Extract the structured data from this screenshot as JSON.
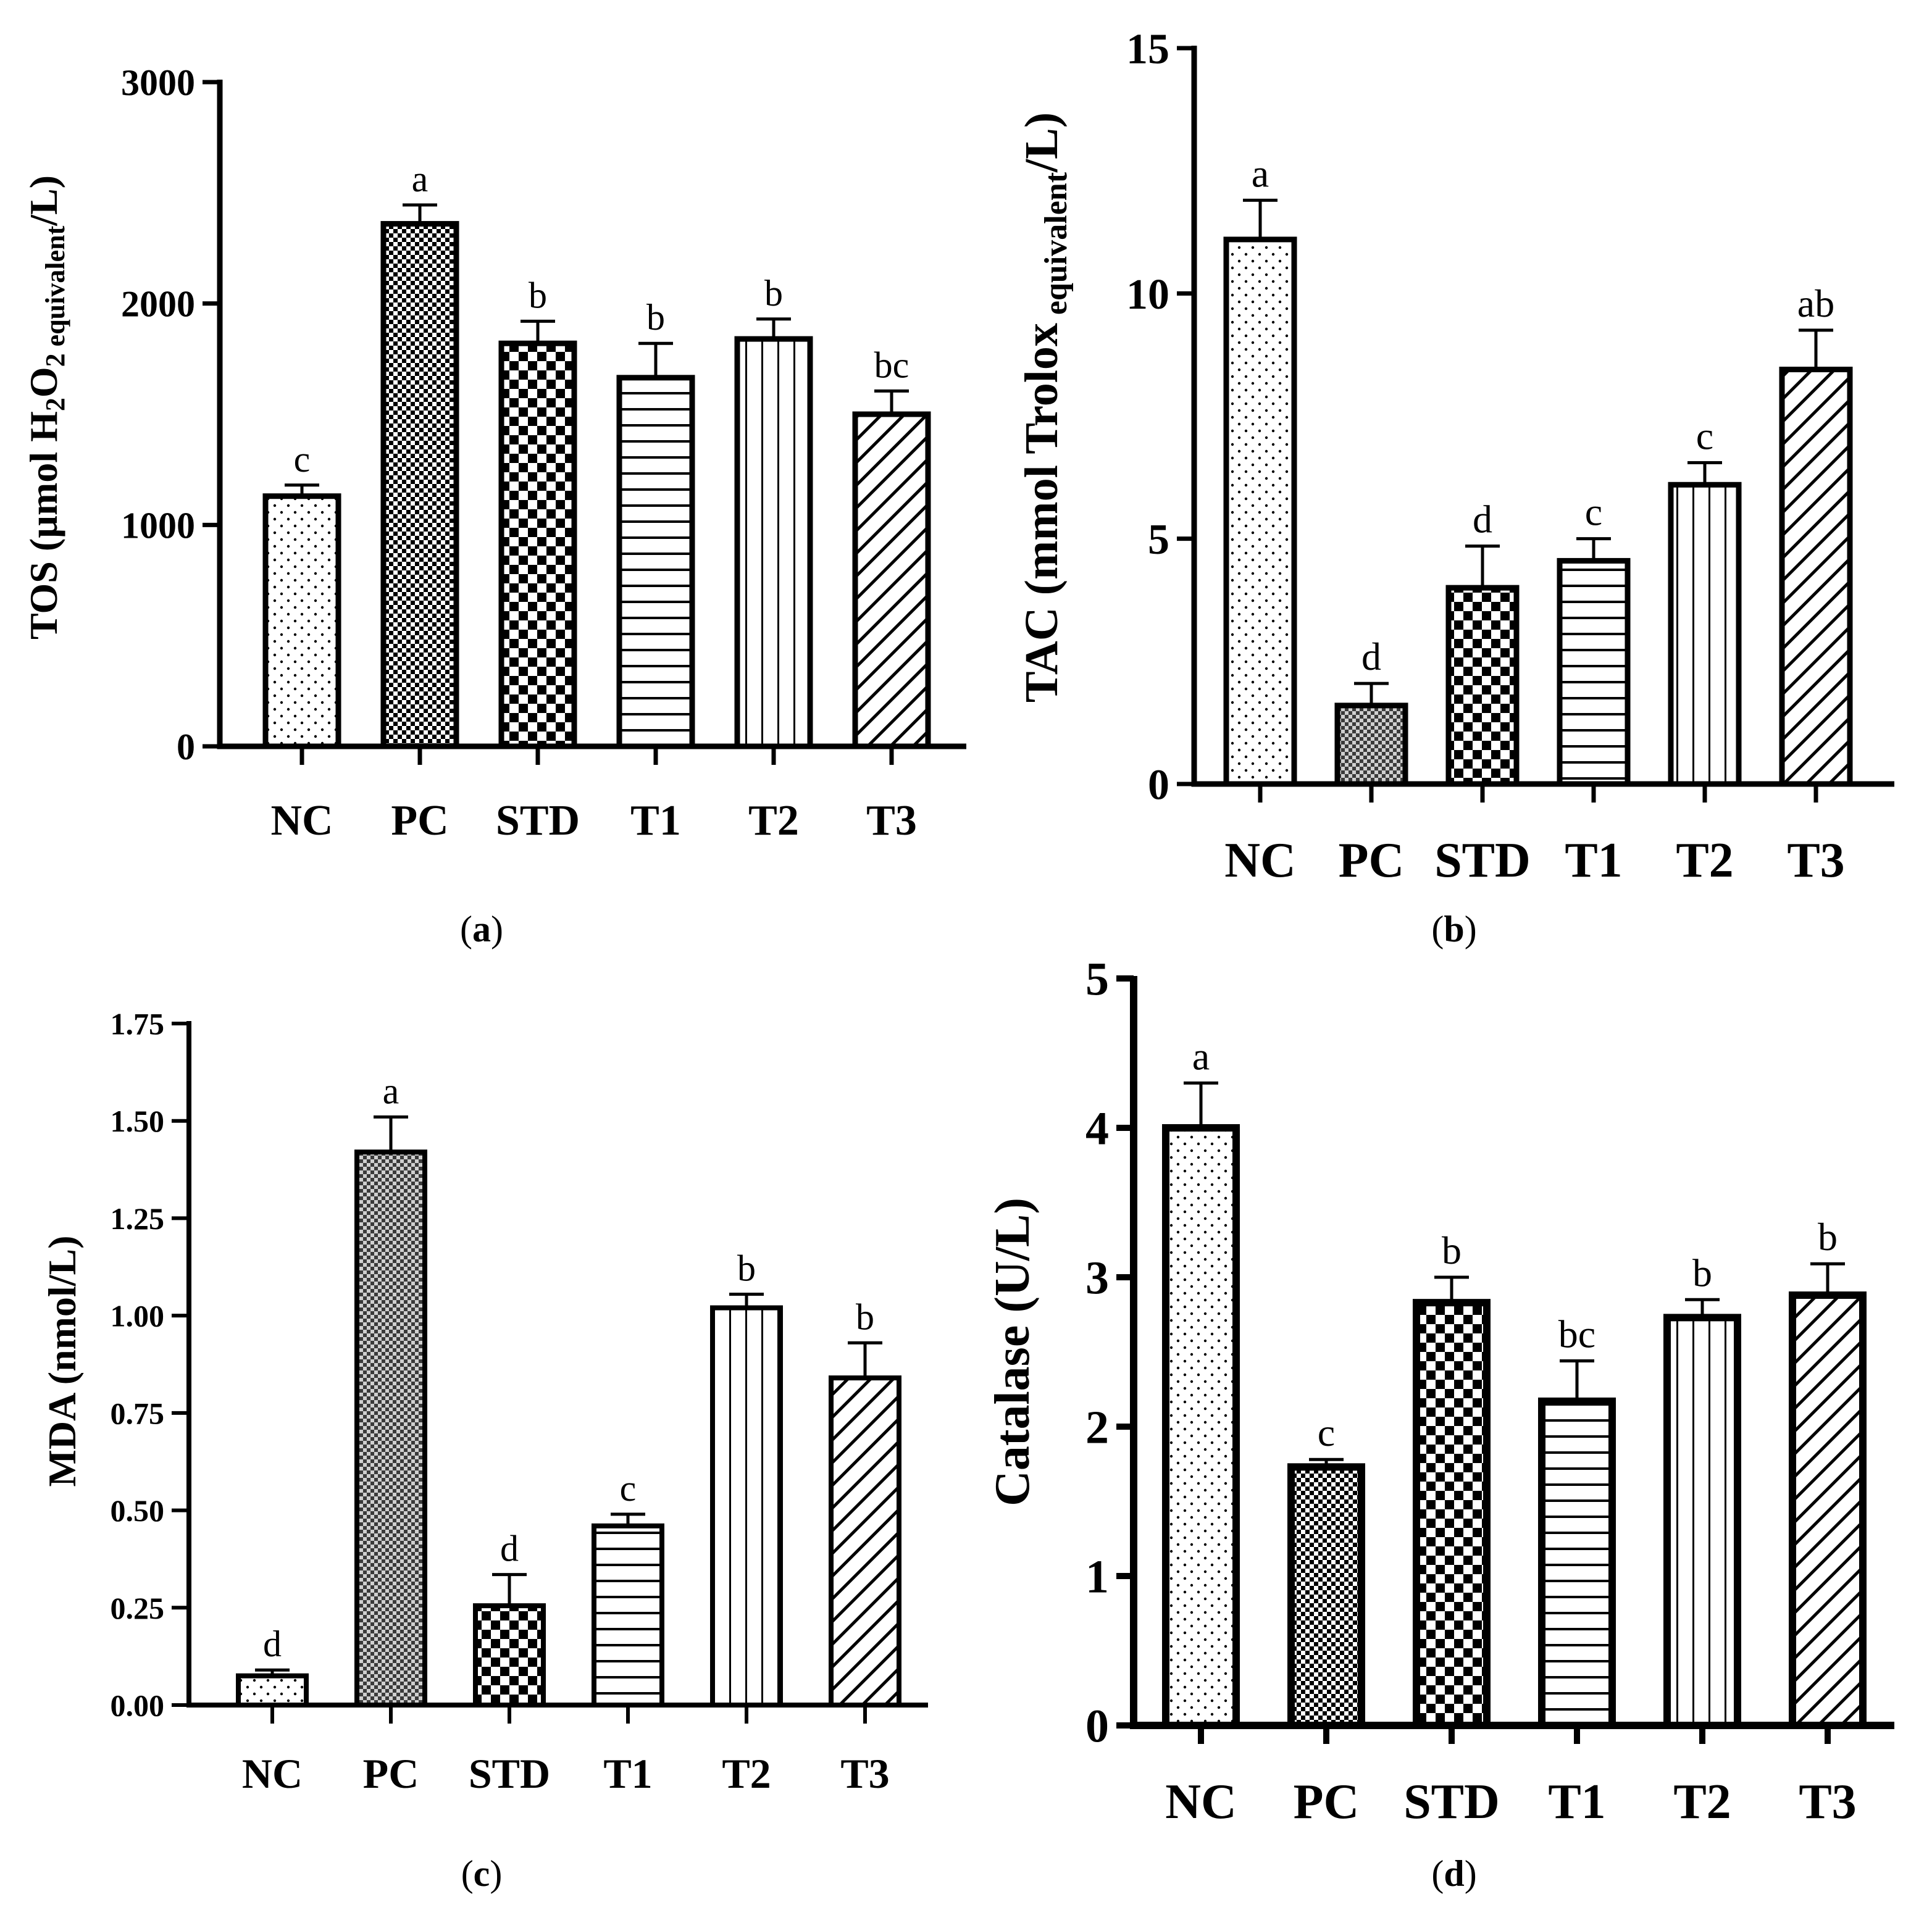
{
  "chart_data": [
    {
      "type": "bar",
      "panel_label": "a",
      "categories": [
        "NC",
        "PC",
        "STD",
        "T1",
        "T2",
        "T3"
      ],
      "values": [
        1130,
        2360,
        1820,
        1665,
        1840,
        1500
      ],
      "errors": [
        50,
        85,
        100,
        155,
        90,
        105
      ],
      "significance": [
        "c",
        "a",
        "b",
        "b",
        "b",
        "bc"
      ],
      "ylabel": {
        "main": "TOS (µmol H",
        "sub1": "2",
        "mid": "O",
        "sub2": "2",
        "sub3": " equivalent",
        "end": "/L)"
      },
      "yticks": [
        0,
        1000,
        2000,
        3000
      ],
      "ylim": [
        0,
        3000
      ],
      "patterns": [
        "dots",
        "fine-checker",
        "checker",
        "hlines",
        "vlines",
        "diag"
      ]
    },
    {
      "type": "bar",
      "panel_label": "b",
      "categories": [
        "NC",
        "PC",
        "STD",
        "T1",
        "T2",
        "T3"
      ],
      "values": [
        11.1,
        1.6,
        4.0,
        4.55,
        6.1,
        8.45
      ],
      "errors": [
        0.8,
        0.45,
        0.85,
        0.45,
        0.45,
        0.8
      ],
      "significance": [
        "a",
        "d",
        "d",
        "c",
        "c",
        "ab"
      ],
      "ylabel": {
        "main": "TAC (mmol Trolox",
        "sub1": " equivalent",
        "end": "/L)"
      },
      "yticks": [
        0,
        5,
        10,
        15
      ],
      "ylim": [
        0,
        15
      ],
      "patterns": [
        "dots",
        "gray-checker",
        "checker",
        "hlines",
        "vlines",
        "diag"
      ]
    },
    {
      "type": "bar",
      "panel_label": "c",
      "categories": [
        "NC",
        "PC",
        "STD",
        "T1",
        "T2",
        "T3"
      ],
      "values": [
        0.075,
        1.42,
        0.255,
        0.46,
        1.02,
        0.84
      ],
      "errors": [
        0.015,
        0.09,
        0.08,
        0.03,
        0.035,
        0.09
      ],
      "significance": [
        "d",
        "a",
        "d",
        "c",
        "b",
        "b"
      ],
      "ylabel": {
        "main": "MDA (nmol/L)"
      },
      "yticks": [
        "0.00",
        "0.25",
        "0.50",
        "0.75",
        "1.00",
        "1.25",
        "1.50",
        "1.75"
      ],
      "ylim": [
        0,
        1.75
      ],
      "patterns": [
        "dots",
        "gray-checker",
        "checker",
        "hlines",
        "vlines",
        "diag"
      ]
    },
    {
      "type": "bar",
      "panel_label": "d",
      "categories": [
        "NC",
        "PC",
        "STD",
        "T1",
        "T2",
        "T3"
      ],
      "values": [
        4.0,
        1.73,
        2.83,
        2.17,
        2.73,
        2.88
      ],
      "errors": [
        0.3,
        0.05,
        0.17,
        0.27,
        0.12,
        0.21
      ],
      "significance": [
        "a",
        "c",
        "b",
        "bc",
        "b",
        "b"
      ],
      "ylabel": {
        "main": "Catalase (U/L)"
      },
      "yticks": [
        0,
        1,
        2,
        3,
        4,
        5
      ],
      "ylim": [
        0,
        5
      ],
      "patterns": [
        "dots",
        "fine-checker",
        "checker",
        "hlines",
        "vlines",
        "diag"
      ]
    }
  ]
}
